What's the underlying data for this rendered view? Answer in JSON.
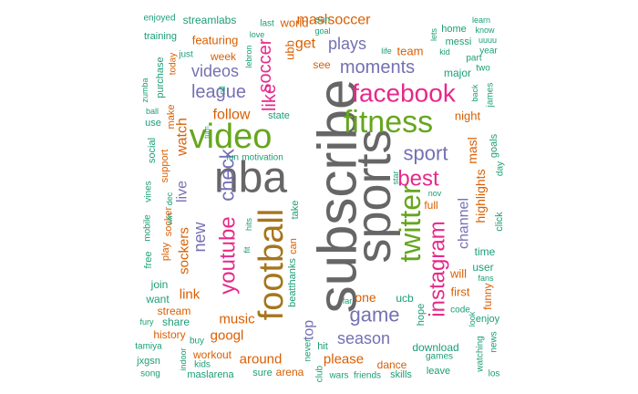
{
  "palette": {
    "teal": "#1b9e77",
    "orange": "#d95f02",
    "purple": "#7570b3",
    "pink": "#e7298a",
    "green": "#66a61e",
    "gold": "#a6761d",
    "gray": "#666666"
  },
  "words": [
    {
      "text": "subscribe",
      "color": "gray"
    },
    {
      "text": "sports",
      "color": "gray"
    },
    {
      "text": "nba",
      "color": "gray"
    },
    {
      "text": "football",
      "color": "gold"
    },
    {
      "text": "video",
      "color": "green"
    },
    {
      "text": "fitness",
      "color": "green"
    },
    {
      "text": "facebook",
      "color": "pink"
    },
    {
      "text": "twitter",
      "color": "green"
    },
    {
      "text": "instagram",
      "color": "pink"
    },
    {
      "text": "youtube",
      "color": "pink"
    },
    {
      "text": "best",
      "color": "pink"
    },
    {
      "text": "check",
      "color": "purple"
    },
    {
      "text": "sport",
      "color": "purple"
    },
    {
      "text": "game",
      "color": "purple"
    },
    {
      "text": "moments",
      "color": "purple"
    },
    {
      "text": "league",
      "color": "purple"
    },
    {
      "text": "soccer",
      "color": "pink"
    },
    {
      "text": "like",
      "color": "pink"
    },
    {
      "text": "plays",
      "color": "purple"
    },
    {
      "text": "videos",
      "color": "purple"
    },
    {
      "text": "new",
      "color": "purple"
    },
    {
      "text": "channel",
      "color": "purple"
    },
    {
      "text": "season",
      "color": "purple"
    },
    {
      "text": "top",
      "color": "purple"
    },
    {
      "text": "highlights",
      "color": "orange"
    },
    {
      "text": "maslsoccer",
      "color": "orange"
    },
    {
      "text": "get",
      "color": "orange"
    },
    {
      "text": "follow",
      "color": "orange"
    },
    {
      "text": "live",
      "color": "purple"
    },
    {
      "text": "watch",
      "color": "orange"
    },
    {
      "text": "sockers",
      "color": "orange"
    },
    {
      "text": "link",
      "color": "orange"
    },
    {
      "text": "music",
      "color": "orange"
    },
    {
      "text": "googl",
      "color": "orange"
    },
    {
      "text": "around",
      "color": "orange"
    },
    {
      "text": "please",
      "color": "orange"
    },
    {
      "text": "one",
      "color": "orange"
    },
    {
      "text": "masl",
      "color": "orange"
    },
    {
      "text": "night",
      "color": "orange"
    },
    {
      "text": "will",
      "color": "orange"
    },
    {
      "text": "first",
      "color": "orange"
    },
    {
      "text": "ubb",
      "color": "orange"
    },
    {
      "text": "featuring",
      "color": "orange"
    },
    {
      "text": "team",
      "color": "orange"
    },
    {
      "text": "world",
      "color": "orange"
    },
    {
      "text": "week",
      "color": "orange"
    },
    {
      "text": "time",
      "color": "teal"
    },
    {
      "text": "user",
      "color": "teal"
    },
    {
      "text": "major",
      "color": "teal"
    },
    {
      "text": "full",
      "color": "orange"
    },
    {
      "text": "see",
      "color": "orange"
    },
    {
      "text": "dance",
      "color": "orange"
    },
    {
      "text": "download",
      "color": "teal"
    },
    {
      "text": "ucb",
      "color": "teal"
    },
    {
      "text": "hope",
      "color": "teal"
    },
    {
      "text": "funny",
      "color": "orange"
    },
    {
      "text": "goals",
      "color": "teal"
    },
    {
      "text": "workout",
      "color": "orange"
    },
    {
      "text": "arena",
      "color": "orange"
    },
    {
      "text": "sure",
      "color": "teal"
    },
    {
      "text": "state",
      "color": "teal"
    },
    {
      "text": "motivation",
      "color": "teal"
    },
    {
      "text": "fun",
      "color": "teal"
    },
    {
      "text": "beatthanks",
      "color": "teal"
    },
    {
      "text": "take",
      "color": "teal"
    },
    {
      "text": "can",
      "color": "orange"
    },
    {
      "text": "hit",
      "color": "teal"
    },
    {
      "text": "never",
      "color": "teal"
    },
    {
      "text": "club",
      "color": "teal"
    },
    {
      "text": "wars",
      "color": "teal"
    },
    {
      "text": "friends",
      "color": "teal"
    },
    {
      "text": "skills",
      "color": "teal"
    },
    {
      "text": "leave",
      "color": "teal"
    },
    {
      "text": "games",
      "color": "teal"
    },
    {
      "text": "watching",
      "color": "teal"
    },
    {
      "text": "los",
      "color": "teal"
    },
    {
      "text": "news",
      "color": "teal"
    },
    {
      "text": "enjoy",
      "color": "teal"
    },
    {
      "text": "look",
      "color": "teal"
    },
    {
      "text": "code",
      "color": "teal"
    },
    {
      "text": "fans",
      "color": "teal"
    },
    {
      "text": "click",
      "color": "teal"
    },
    {
      "text": "day",
      "color": "teal"
    },
    {
      "text": "nov",
      "color": "teal"
    },
    {
      "text": "star",
      "color": "teal"
    },
    {
      "text": "far",
      "color": "teal"
    },
    {
      "text": "streamlabs",
      "color": "teal"
    },
    {
      "text": "training",
      "color": "teal"
    },
    {
      "text": "enjoyed",
      "color": "teal"
    },
    {
      "text": "purchase",
      "color": "teal"
    },
    {
      "text": "zumba",
      "color": "teal"
    },
    {
      "text": "just",
      "color": "teal"
    },
    {
      "text": "today",
      "color": "orange"
    },
    {
      "text": "make",
      "color": "orange"
    },
    {
      "text": "support",
      "color": "orange"
    },
    {
      "text": "use",
      "color": "teal"
    },
    {
      "text": "social",
      "color": "teal"
    },
    {
      "text": "vines",
      "color": "teal"
    },
    {
      "text": "mobile",
      "color": "teal"
    },
    {
      "text": "free",
      "color": "teal"
    },
    {
      "text": "play",
      "color": "orange"
    },
    {
      "text": "socker",
      "color": "orange"
    },
    {
      "text": "join",
      "color": "teal"
    },
    {
      "text": "want",
      "color": "teal"
    },
    {
      "text": "stream",
      "color": "orange"
    },
    {
      "text": "share",
      "color": "teal"
    },
    {
      "text": "fury",
      "color": "teal"
    },
    {
      "text": "history",
      "color": "orange"
    },
    {
      "text": "tamiya",
      "color": "teal"
    },
    {
      "text": "buy",
      "color": "teal"
    },
    {
      "text": "jxgsn",
      "color": "teal"
    },
    {
      "text": "indoor",
      "color": "teal"
    },
    {
      "text": "kids",
      "color": "teal"
    },
    {
      "text": "song",
      "color": "teal"
    },
    {
      "text": "maslarena",
      "color": "teal"
    },
    {
      "text": "last",
      "color": "teal"
    },
    {
      "text": "lebron",
      "color": "teal"
    },
    {
      "text": "love",
      "color": "teal"
    },
    {
      "text": "san",
      "color": "teal"
    },
    {
      "text": "goal",
      "color": "teal"
    },
    {
      "text": "life",
      "color": "teal"
    },
    {
      "text": "lets",
      "color": "teal"
    },
    {
      "text": "home",
      "color": "teal"
    },
    {
      "text": "messi",
      "color": "teal"
    },
    {
      "text": "kid",
      "color": "teal"
    },
    {
      "text": "learn",
      "color": "teal"
    },
    {
      "text": "know",
      "color": "teal"
    },
    {
      "text": "uuuu",
      "color": "teal"
    },
    {
      "text": "part",
      "color": "teal"
    },
    {
      "text": "two",
      "color": "teal"
    },
    {
      "text": "year",
      "color": "teal"
    },
    {
      "text": "back",
      "color": "teal"
    },
    {
      "text": "james",
      "color": "teal"
    },
    {
      "text": "nfl",
      "color": "teal"
    },
    {
      "text": "ball",
      "color": "teal"
    },
    {
      "text": "turn",
      "color": "teal"
    },
    {
      "text": "dec",
      "color": "teal"
    },
    {
      "text": "win",
      "color": "teal"
    },
    {
      "text": "fit",
      "color": "teal"
    },
    {
      "text": "hits",
      "color": "teal"
    }
  ]
}
